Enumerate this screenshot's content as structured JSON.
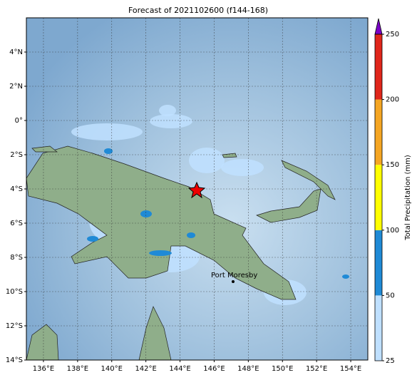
{
  "title": "Forecast of 2021102600 (f144-168)",
  "map": {
    "xlim": [
      135,
      155
    ],
    "ylim": [
      -14,
      6
    ],
    "xticks": [
      {
        "value": 136,
        "label": "136°E"
      },
      {
        "value": 138,
        "label": "138°E"
      },
      {
        "value": 140,
        "label": "140°E"
      },
      {
        "value": 142,
        "label": "142°E"
      },
      {
        "value": 144,
        "label": "144°E"
      },
      {
        "value": 146,
        "label": "146°E"
      },
      {
        "value": 148,
        "label": "148°E"
      },
      {
        "value": 150,
        "label": "150°E"
      },
      {
        "value": 152,
        "label": "152°E"
      },
      {
        "value": 154,
        "label": "154°E"
      }
    ],
    "yticks": [
      {
        "value": 4,
        "label": "4°N"
      },
      {
        "value": 2,
        "label": "2°N"
      },
      {
        "value": 0,
        "label": "0°"
      },
      {
        "value": -2,
        "label": "2°S"
      },
      {
        "value": -4,
        "label": "4°S"
      },
      {
        "value": -6,
        "label": "6°S"
      },
      {
        "value": -8,
        "label": "8°S"
      },
      {
        "value": -10,
        "label": "10°S"
      },
      {
        "value": -12,
        "label": "12°S"
      },
      {
        "value": -14,
        "label": "14°S"
      }
    ],
    "annotation": "Port Moresby"
  },
  "colorbar": {
    "label": "Total Precipitation (mm)",
    "ticks": [
      25,
      50,
      100,
      150,
      200,
      250
    ],
    "colors": [
      "#bfe0ff",
      "#1f8ad6",
      "#ffff00",
      "#f5a623",
      "#e0261b"
    ],
    "extend_color": "#7b00c8"
  }
}
